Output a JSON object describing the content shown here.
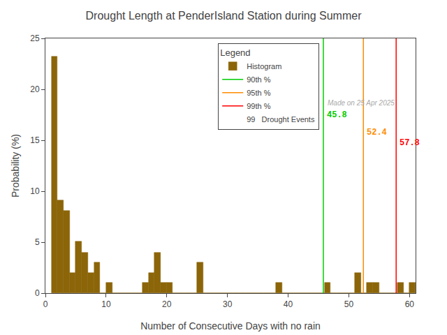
{
  "chart_data": {
    "type": "histogram",
    "title": "Drought Length at PenderIsland Station during Summer",
    "xlabel": "Number of Consecutive Days with no rain",
    "ylabel": "Probability (%)",
    "name": "Histogram",
    "bins": [
      1,
      2,
      3,
      4,
      5,
      6,
      7,
      8,
      9,
      10,
      11,
      12,
      13,
      14,
      15,
      16,
      17,
      18,
      19,
      20,
      21,
      22,
      23,
      24,
      25,
      26,
      27,
      28,
      29,
      30,
      31,
      32,
      33,
      34,
      35,
      36,
      37,
      38,
      39,
      40,
      41,
      42,
      43,
      44,
      45,
      46,
      47,
      48,
      49,
      50,
      51,
      52,
      53,
      54,
      55,
      56,
      57,
      58,
      59,
      60,
      61
    ],
    "values": [
      23.2,
      9.1,
      8.1,
      2.0,
      5.1,
      4.0,
      2.0,
      3.0,
      0.0,
      1.0,
      0.0,
      0.0,
      0.0,
      0.0,
      0.0,
      1.0,
      2.0,
      4.0,
      1.0,
      1.0,
      0.0,
      0.0,
      0.0,
      0.0,
      3.0,
      0.0,
      0.0,
      0.0,
      0.0,
      0.0,
      0.0,
      0.0,
      0.0,
      0.0,
      0.0,
      0.0,
      0.0,
      1.0,
      0.0,
      0.0,
      0.0,
      0.0,
      0.0,
      0.0,
      0.0,
      1.0,
      0.0,
      0.0,
      0.0,
      0.0,
      2.0,
      0.0,
      1.0,
      1.0,
      0.0,
      0.0,
      0.0,
      1.0,
      0.0,
      1.0
    ],
    "color": "#8B6508",
    "vertical_lines": [
      {
        "name": "90th %",
        "x": 45.8,
        "color": "#00CC00"
      },
      {
        "name": "95th %",
        "x": 52.4,
        "color": "#FF8C00"
      },
      {
        "name": "99th %",
        "x": 57.8,
        "color": "#FF0000"
      }
    ],
    "legend_title": "Legend",
    "legend_note": "99   Drought Events",
    "annotations": [
      "Made on 25 Apr 2025"
    ],
    "xlim": [
      0,
      61
    ],
    "ylim": [
      0,
      25
    ],
    "xticks": [
      0,
      10,
      20,
      30,
      40,
      50,
      60
    ],
    "yticks": [
      0,
      5,
      10,
      15,
      20,
      25
    ],
    "grid": false,
    "legend": "upper right"
  }
}
